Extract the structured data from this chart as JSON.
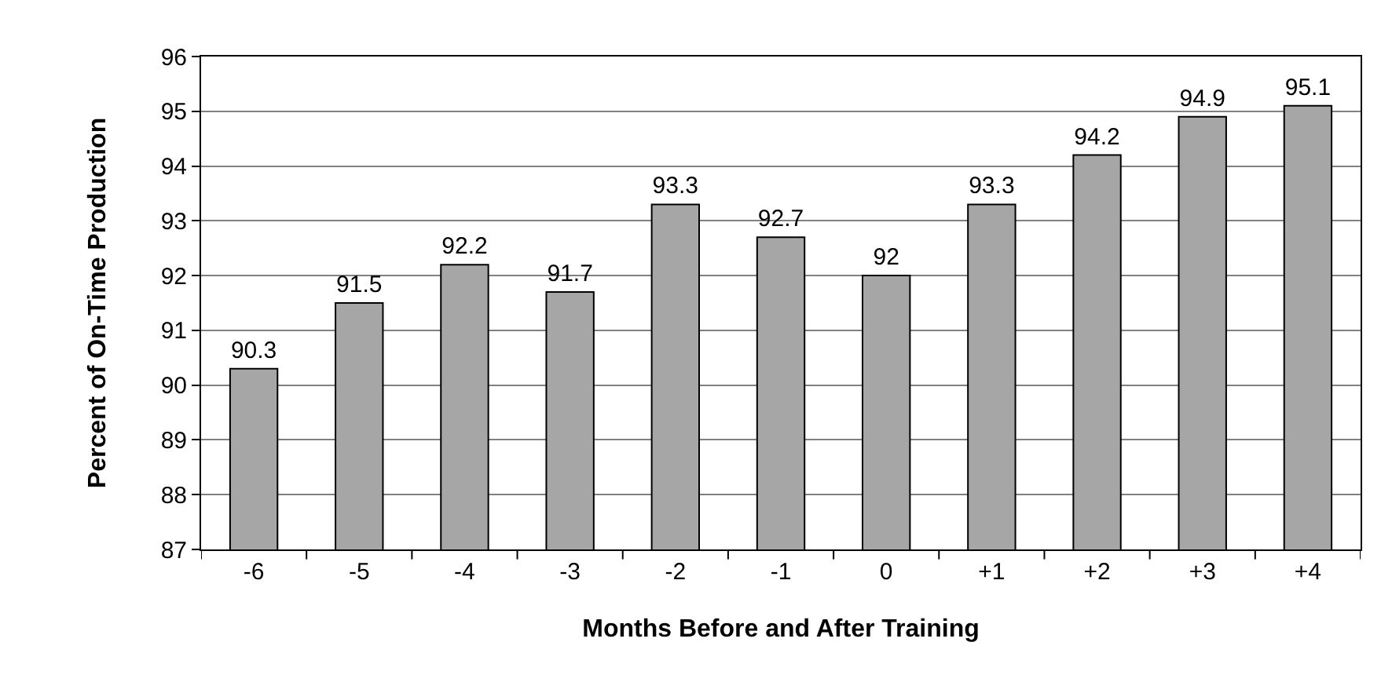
{
  "chart_data": {
    "type": "bar",
    "xlabel": "Months Before and After Training",
    "ylabel": "Percent of On-Time Production",
    "categories": [
      "-6",
      "-5",
      "-4",
      "-3",
      "-2",
      "-1",
      "0",
      "+1",
      "+2",
      "+3",
      "+4"
    ],
    "values": [
      90.3,
      91.5,
      92.2,
      91.7,
      93.3,
      92.7,
      92,
      93.3,
      94.2,
      94.9,
      95.1
    ],
    "color": "#a6a6a6",
    "ylim": [
      87,
      96
    ],
    "yticks": [
      87,
      88,
      89,
      90,
      91,
      92,
      93,
      94,
      95,
      96
    ],
    "grid": "y",
    "data_labels": true
  }
}
